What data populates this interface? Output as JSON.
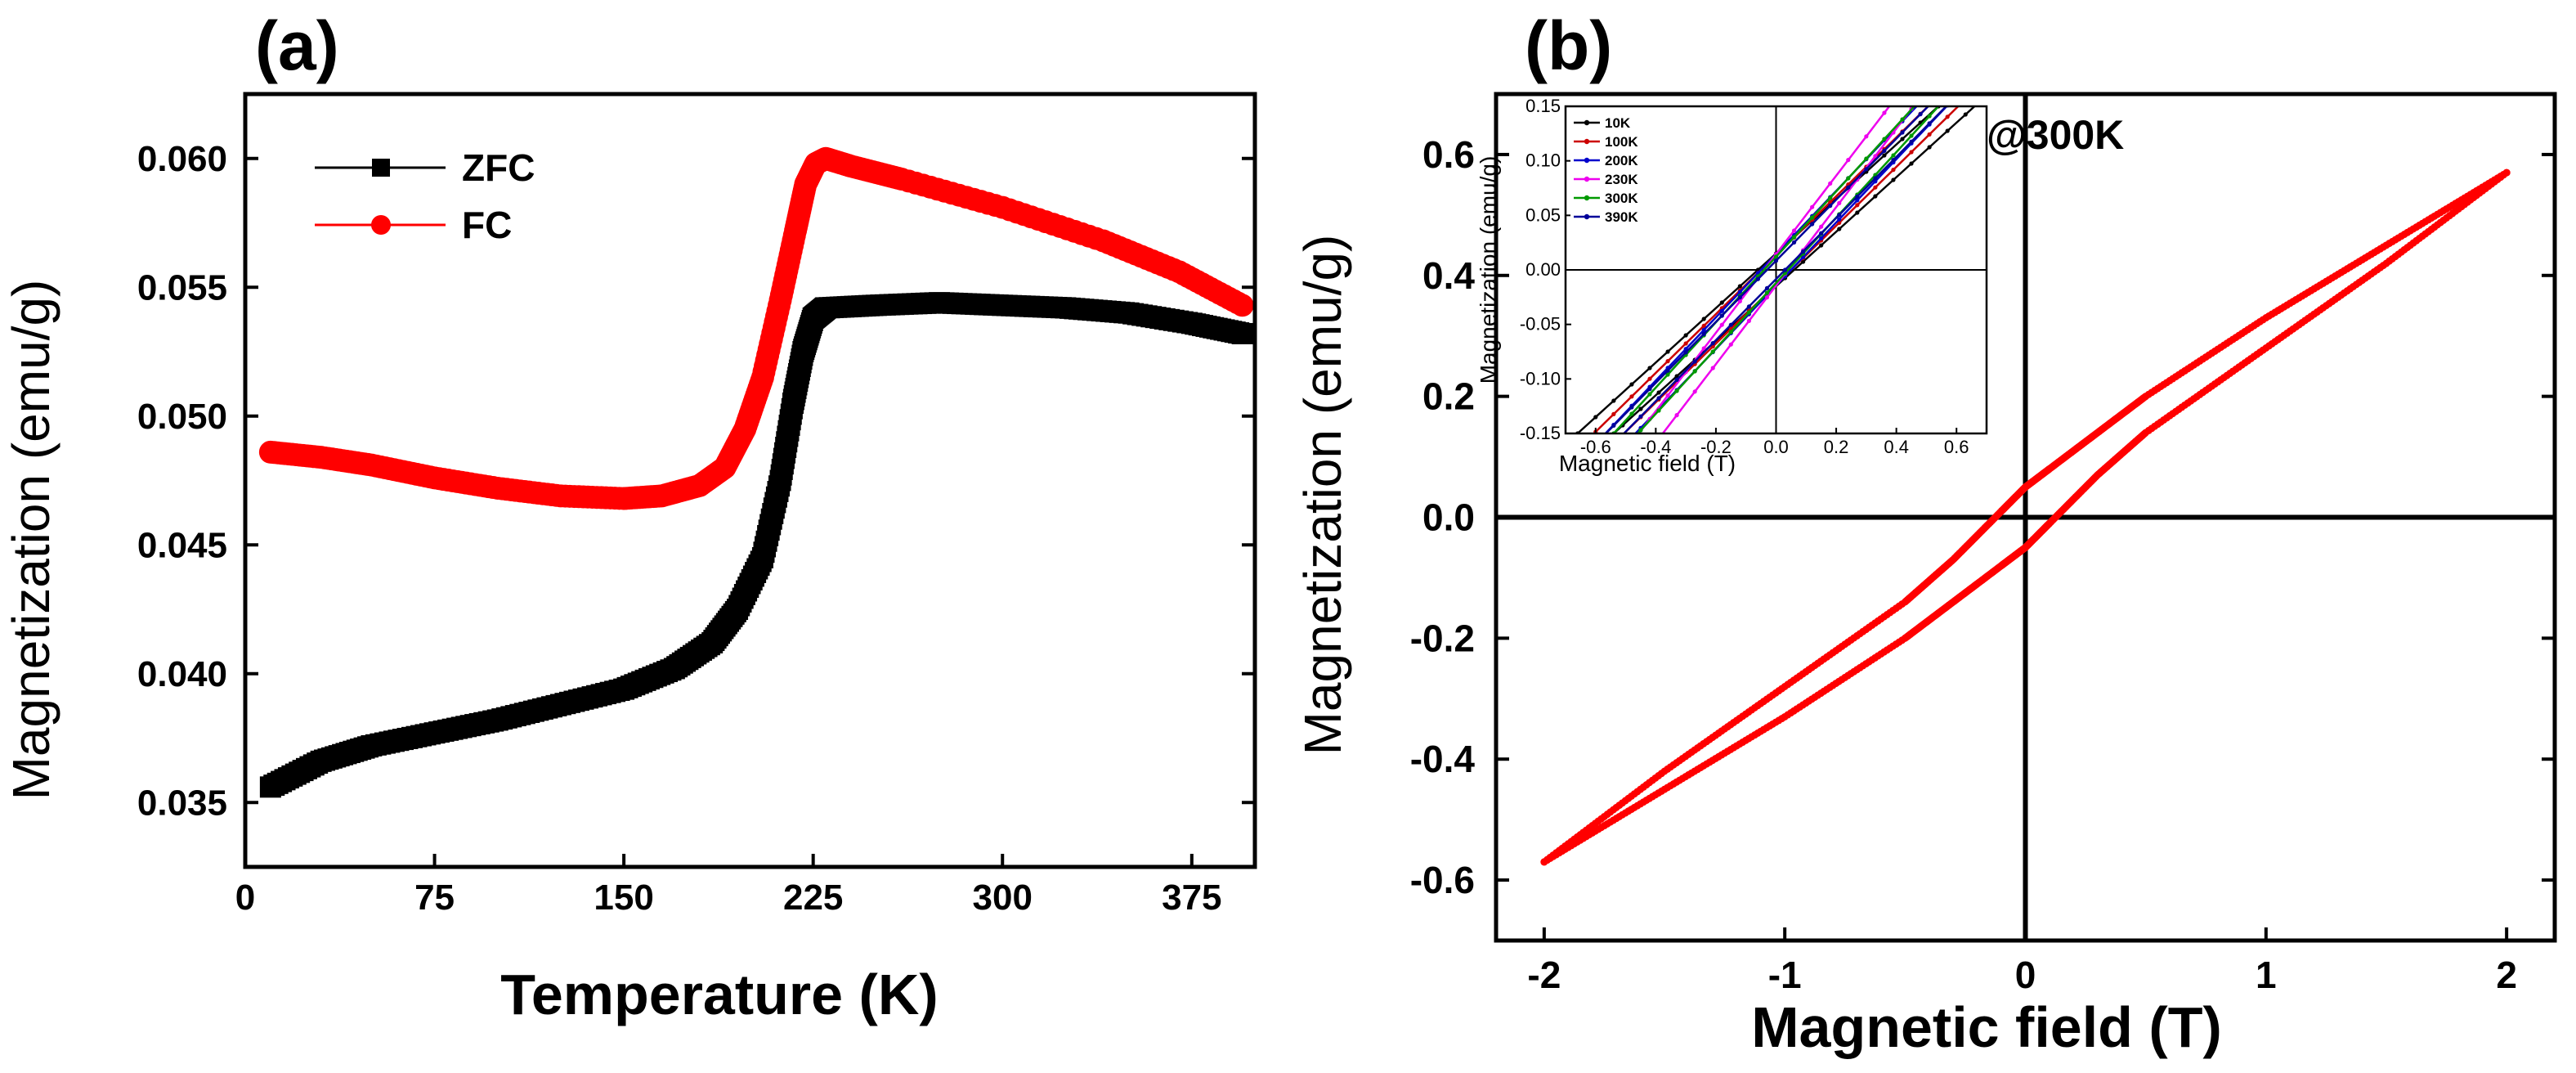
{
  "chart_data": [
    {
      "panel": "(a)",
      "type": "scatter",
      "xlabel": "Temperature (K)",
      "ylabel": "Magnetization (emu/g)",
      "xlim": [
        0,
        400
      ],
      "ylim": [
        0.0325,
        0.0625
      ],
      "xticks": [
        0,
        75,
        150,
        225,
        300,
        375
      ],
      "yticks": [
        0.035,
        0.04,
        0.045,
        0.05,
        0.055,
        0.06
      ],
      "ytick_labels": [
        "0.035",
        "0.040",
        "0.045",
        "0.050",
        "0.055",
        "0.060"
      ],
      "legend_position": "top-left",
      "series": [
        {
          "name": "ZFC",
          "color": "#000000",
          "marker": "square",
          "points": [
            [
              10,
              0.0356
            ],
            [
              30,
              0.0366
            ],
            [
              50,
              0.0372
            ],
            [
              75,
              0.0377
            ],
            [
              100,
              0.0382
            ],
            [
              125,
              0.0388
            ],
            [
              150,
              0.0394
            ],
            [
              170,
              0.0402
            ],
            [
              185,
              0.0412
            ],
            [
              195,
              0.0425
            ],
            [
              205,
              0.0445
            ],
            [
              212,
              0.0475
            ],
            [
              217,
              0.0505
            ],
            [
              221,
              0.0525
            ],
            [
              225,
              0.0538
            ],
            [
              230,
              0.0542
            ],
            [
              250,
              0.0543
            ],
            [
              275,
              0.0544
            ],
            [
              300,
              0.0543
            ],
            [
              325,
              0.0542
            ],
            [
              350,
              0.054
            ],
            [
              375,
              0.0536
            ],
            [
              395,
              0.0532
            ]
          ]
        },
        {
          "name": "FC",
          "color": "#ff0000",
          "marker": "circle",
          "points": [
            [
              10,
              0.0486
            ],
            [
              30,
              0.0484
            ],
            [
              50,
              0.0481
            ],
            [
              75,
              0.0476
            ],
            [
              100,
              0.0472
            ],
            [
              125,
              0.0469
            ],
            [
              150,
              0.0468
            ],
            [
              165,
              0.0469
            ],
            [
              180,
              0.0473
            ],
            [
              190,
              0.048
            ],
            [
              198,
              0.0495
            ],
            [
              205,
              0.0515
            ],
            [
              212,
              0.0545
            ],
            [
              218,
              0.0572
            ],
            [
              222,
              0.059
            ],
            [
              226,
              0.0598
            ],
            [
              230,
              0.06
            ],
            [
              240,
              0.0597
            ],
            [
              260,
              0.0592
            ],
            [
              300,
              0.0581
            ],
            [
              340,
              0.0568
            ],
            [
              370,
              0.0556
            ],
            [
              395,
              0.0543
            ]
          ]
        }
      ]
    },
    {
      "panel": "(b)",
      "type": "line",
      "xlabel": "Magnetic field (T)",
      "ylabel": "Magnetization (emu/g)",
      "xlim": [
        -2.2,
        2.2
      ],
      "ylim": [
        -0.7,
        0.7
      ],
      "xticks": [
        -2,
        -1,
        0,
        1,
        2
      ],
      "yticks": [
        -0.6,
        -0.4,
        -0.2,
        0.0,
        0.2,
        0.4,
        0.6
      ],
      "ytick_labels": [
        "-0.6",
        "-0.4",
        "-0.2",
        "0.0",
        "0.2",
        "0.4",
        "0.6"
      ],
      "annotation": "@300K",
      "series": [
        {
          "name": "300K",
          "color": "#ff0000",
          "branches": [
            [
              [
                2,
                0.57
              ],
              [
                1.5,
                0.45
              ],
              [
                1,
                0.33
              ],
              [
                0.5,
                0.2
              ],
              [
                0.3,
                0.14
              ],
              [
                0.1,
                0.08
              ],
              [
                0,
                0.05
              ],
              [
                -0.1,
                0.01
              ],
              [
                -0.3,
                -0.07
              ],
              [
                -0.5,
                -0.14
              ],
              [
                -1,
                -0.28
              ],
              [
                -1.5,
                -0.42
              ],
              [
                -2,
                -0.57
              ]
            ],
            [
              [
                -2,
                -0.57
              ],
              [
                -1.5,
                -0.45
              ],
              [
                -1,
                -0.33
              ],
              [
                -0.5,
                -0.2
              ],
              [
                -0.3,
                -0.14
              ],
              [
                -0.1,
                -0.08
              ],
              [
                0,
                -0.05
              ],
              [
                0.1,
                -0.01
              ],
              [
                0.3,
                0.07
              ],
              [
                0.5,
                0.14
              ],
              [
                1,
                0.28
              ],
              [
                1.5,
                0.42
              ],
              [
                2,
                0.57
              ]
            ]
          ]
        }
      ],
      "inset": {
        "type": "line",
        "xlabel": "Magnetic field (T)",
        "ylabel": "Magnetization (emu/g)",
        "xlim": [
          -0.7,
          0.7
        ],
        "ylim": [
          -0.15,
          0.15
        ],
        "xticks": [
          -0.6,
          -0.4,
          -0.2,
          0.0,
          0.2,
          0.4,
          0.6
        ],
        "xtick_labels": [
          "-0.6",
          "-0.4",
          "-0.2",
          "0.0",
          "0.2",
          "0.4",
          "0.6"
        ],
        "yticks": [
          -0.15,
          -0.1,
          -0.05,
          0.0,
          0.05,
          0.1,
          0.15
        ],
        "ytick_labels": [
          "-0.15",
          "-0.10",
          "-0.05",
          "0.00",
          "0.05",
          "0.10",
          "0.15"
        ],
        "legend_position": "top-left",
        "series": [
          {
            "name": "10K",
            "color": "#000000",
            "slope": 0.25,
            "coercivity": 0.06,
            "remanence": 0.015
          },
          {
            "name": "100K",
            "color": "#cc0000",
            "slope": 0.27,
            "coercivity": 0.05,
            "remanence": 0.013
          },
          {
            "name": "200K",
            "color": "#0000cc",
            "slope": 0.29,
            "coercivity": 0.05,
            "remanence": 0.014
          },
          {
            "name": "230K",
            "color": "#ee00ee",
            "slope": 0.36,
            "coercivity": 0.04,
            "remanence": 0.014
          },
          {
            "name": "300K",
            "color": "#009900",
            "slope": 0.3,
            "coercivity": 0.04,
            "remanence": 0.012
          },
          {
            "name": "390K",
            "color": "#000099",
            "slope": 0.28,
            "coercivity": 0.03,
            "remanence": 0.01
          }
        ]
      }
    }
  ]
}
